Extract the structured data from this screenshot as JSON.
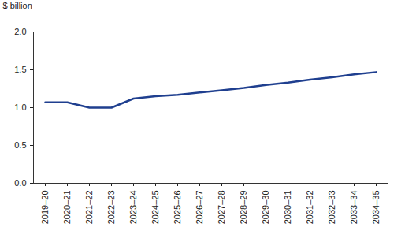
{
  "chart_data": {
    "type": "line",
    "y_label": "$ billion",
    "categories": [
      "2019–20",
      "2020–21",
      "2021–22",
      "2022–23",
      "2023–24",
      "2024–25",
      "2025–26",
      "2026–27",
      "2027–28",
      "2028–29",
      "2029–30",
      "2030–31",
      "2031–32",
      "2032–33",
      "2033–34",
      "2034–35"
    ],
    "values": [
      1.07,
      1.07,
      1.0,
      1.0,
      1.12,
      1.15,
      1.17,
      1.2,
      1.23,
      1.26,
      1.3,
      1.33,
      1.37,
      1.4,
      1.44,
      1.47
    ],
    "color": "#1f3f8f",
    "ylim": [
      0,
      2
    ],
    "yticks": [
      {
        "value": 0,
        "label": "0.0"
      },
      0.5,
      {
        "value": 1,
        "label": "1.0"
      },
      1.5,
      {
        "value": 2,
        "label": "2.0"
      }
    ],
    "grid": false
  }
}
